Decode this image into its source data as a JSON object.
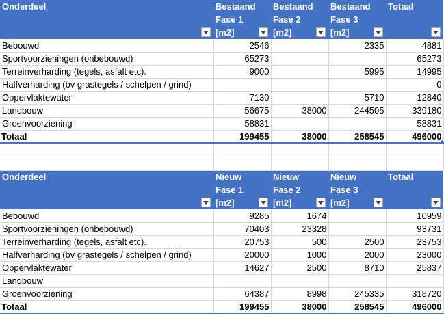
{
  "table1": {
    "headers": {
      "col0": "Onderdeel",
      "col1_line1": "Bestaand",
      "col1_line2": "Fase 1",
      "col1_unit": "[m2]",
      "col2_line1": "Bestaand",
      "col2_line2": "Fase 2",
      "col2_unit": "[m2]",
      "col3_line1": "Bestaand",
      "col3_line2": "Fase 3",
      "col3_unit": "[m2]",
      "col4_line1": "Totaal"
    },
    "rows": [
      {
        "label": "Bebouwd",
        "f1": "2546",
        "f2": "",
        "f3": "2335",
        "total": "4881"
      },
      {
        "label": "Sportvoorzieningen (onbebouwd)",
        "f1": "65273",
        "f2": "",
        "f3": "",
        "total": "65273"
      },
      {
        "label": "Terreinverharding (tegels, asfalt etc).",
        "f1": "9000",
        "f2": "",
        "f3": "5995",
        "total": "14995"
      },
      {
        "label": "Halfverharding (bv grastegels / schelpen / grind)",
        "f1": "",
        "f2": "",
        "f3": "",
        "total": "0"
      },
      {
        "label": "Oppervlaktewater",
        "f1": "7130",
        "f2": "",
        "f3": "5710",
        "total": "12840"
      },
      {
        "label": "Landbouw",
        "f1": "56675",
        "f2": "38000",
        "f3": "244505",
        "total": "339180"
      },
      {
        "label": "Groenvoorziening",
        "f1": "58831",
        "f2": "",
        "f3": "",
        "total": "58831"
      }
    ],
    "total_row": {
      "label": "Totaal",
      "f1": "199455",
      "f2": "38000",
      "f3": "258545",
      "total": "496000"
    }
  },
  "table2": {
    "headers": {
      "col0": "Onderdeel",
      "col1_line1": "Nieuw",
      "col1_line2": "Fase 1",
      "col1_unit": "[m2]",
      "col2_line1": "Nieuw",
      "col2_line2": "Fase 2",
      "col2_unit": "[m2]",
      "col3_line1": "Nieuw",
      "col3_line2": "Fase 3",
      "col3_unit": "[m2]",
      "col4_line1": "Totaal"
    },
    "rows": [
      {
        "label": "Bebouwd",
        "f1": "9285",
        "f2": "1674",
        "f3": "",
        "total": "10959"
      },
      {
        "label": "Sportvoorzieningen (onbebouwd)",
        "f1": "70403",
        "f2": "23328",
        "f3": "",
        "total": "93731"
      },
      {
        "label": "Terreinverharding (tegels, asfalt etc).",
        "f1": "20753",
        "f2": "500",
        "f3": "2500",
        "total": "23753"
      },
      {
        "label": "Halfverharding (bv grastegels / schelpen / grind)",
        "f1": "20000",
        "f2": "1000",
        "f3": "2000",
        "total": "23000"
      },
      {
        "label": "Oppervlaktewater",
        "f1": "14627",
        "f2": "2500",
        "f3": "8710",
        "total": "25837"
      },
      {
        "label": "Landbouw",
        "f1": "",
        "f2": "",
        "f3": "",
        "total": ""
      },
      {
        "label": "Groenvoorziening",
        "f1": "64387",
        "f2": "8998",
        "f3": "245335",
        "total": "318720"
      }
    ],
    "total_row": {
      "label": "Totaal",
      "f1": "199455",
      "f2": "38000",
      "f3": "258545",
      "total": "496000"
    }
  }
}
